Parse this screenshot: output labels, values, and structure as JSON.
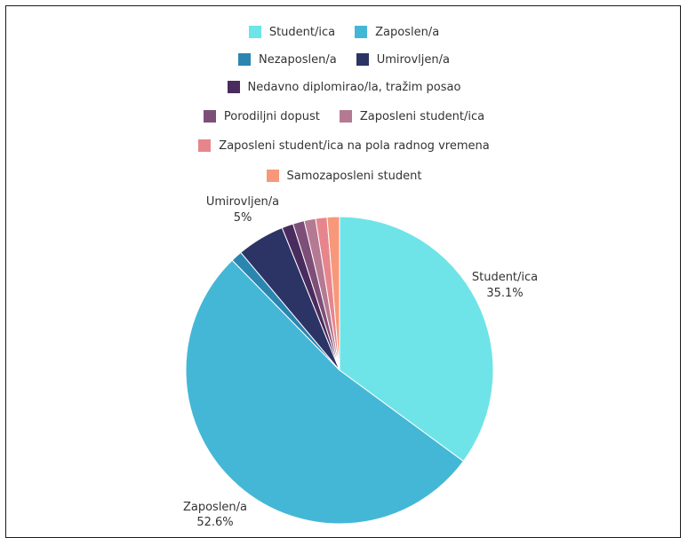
{
  "chart_data": {
    "type": "pie",
    "title": "",
    "legend_position": "top",
    "categories": [
      "Student/ica",
      "Zaposlen/a",
      "Nezaposlen/a",
      "Umirovljen/a",
      "Nedavno diplomirao/la, tražim posao",
      "Porodiljni dopust",
      "Zaposleni student/ica",
      "Zaposleni student/ica na pola radnog vremena",
      "Samozaposleni student"
    ],
    "values": [
      35.1,
      52.6,
      1.2,
      5.0,
      1.2,
      1.2,
      1.2,
      1.2,
      1.3
    ],
    "colors": [
      "#6ee4e8",
      "#44b7d6",
      "#2a86b0",
      "#2c3466",
      "#4a2b5e",
      "#7d4f78",
      "#b57a93",
      "#e6868c",
      "#f7987a"
    ],
    "data_labels": [
      {
        "name": "Student/ica",
        "value": "35.1%"
      },
      {
        "name": "Zaposlen/a",
        "value": "52.6%"
      },
      {
        "name": "Umirovljen/a",
        "value": "5%"
      }
    ]
  }
}
